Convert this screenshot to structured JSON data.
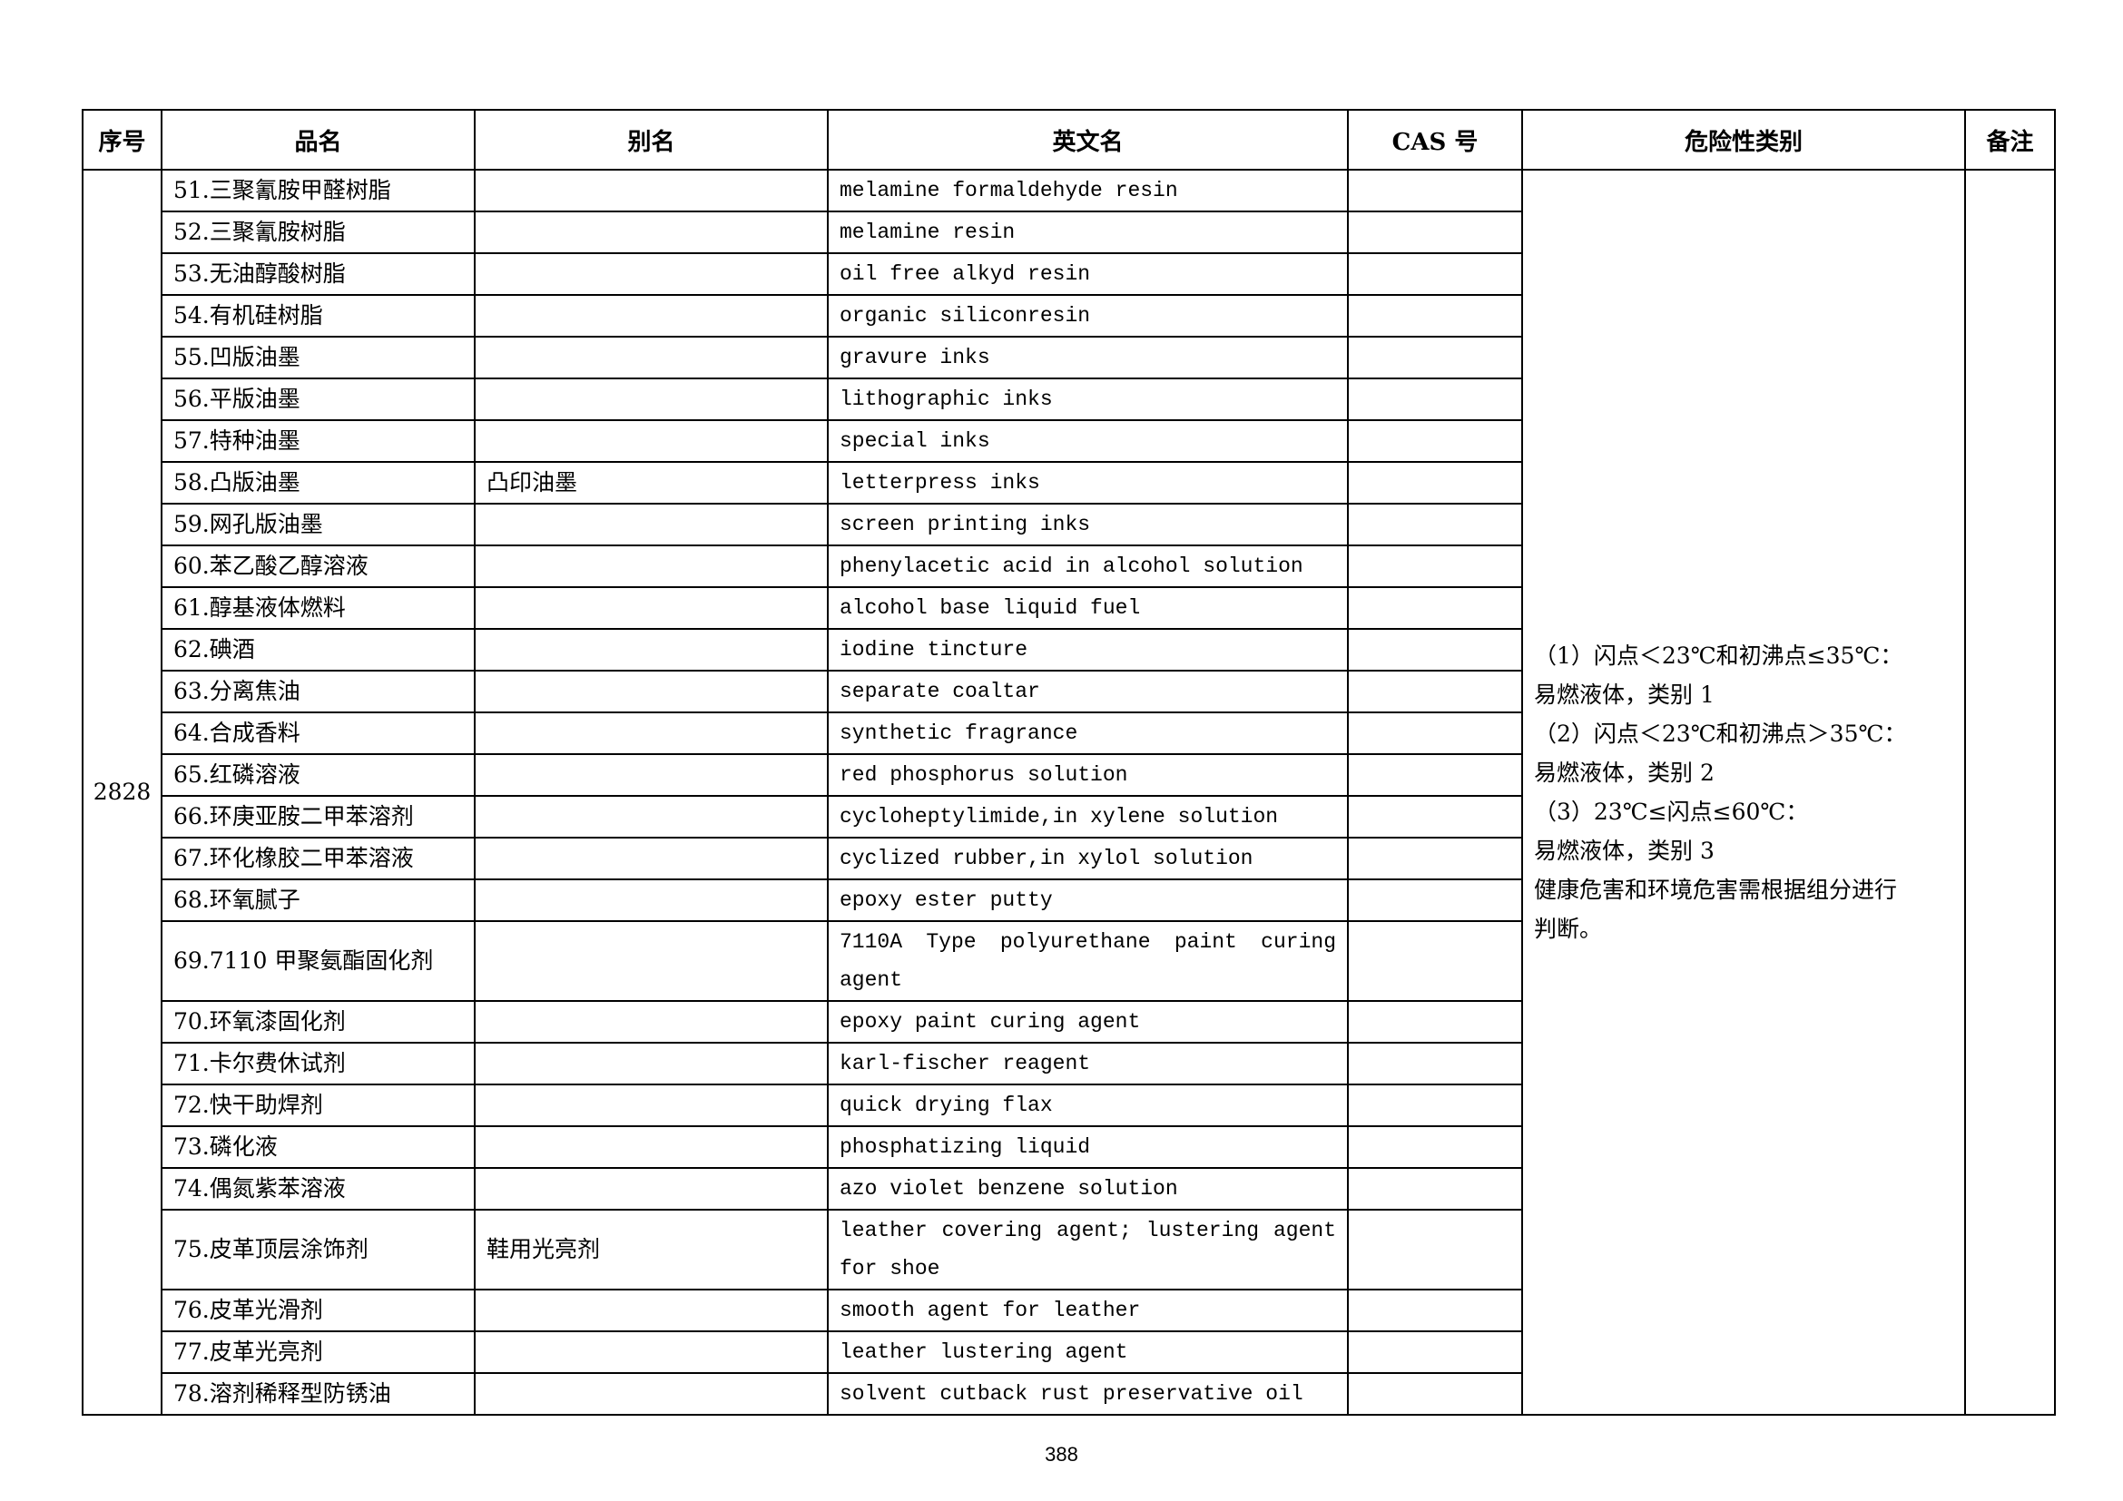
{
  "headers": [
    "序号",
    "品名",
    "别名",
    "英文名",
    "CAS 号",
    "危险性类别",
    "备注"
  ],
  "serial": "2828",
  "rows": [
    {
      "name": "51.三聚氰胺甲醛树脂",
      "alias": "",
      "en": "melamine formaldehyde resin"
    },
    {
      "name": "52.三聚氰胺树脂",
      "alias": "",
      "en": "melamine resin"
    },
    {
      "name": "53.无油醇酸树脂",
      "alias": "",
      "en": "oil free alkyd resin"
    },
    {
      "name": "54.有机硅树脂",
      "alias": "",
      "en": "organic siliconresin"
    },
    {
      "name": "55.凹版油墨",
      "alias": "",
      "en": "gravure inks"
    },
    {
      "name": "56.平版油墨",
      "alias": "",
      "en": "lithographic inks"
    },
    {
      "name": "57.特种油墨",
      "alias": "",
      "en": "special inks"
    },
    {
      "name": "58.凸版油墨",
      "alias": "凸印油墨",
      "en": "letterpress inks"
    },
    {
      "name": "59.网孔版油墨",
      "alias": "",
      "en": "screen printing inks"
    },
    {
      "name": "60.苯乙酸乙醇溶液",
      "alias": "",
      "en": "phenylacetic acid in alcohol solution"
    },
    {
      "name": "61.醇基液体燃料",
      "alias": "",
      "en": "alcohol base liquid fuel"
    },
    {
      "name": "62.碘酒",
      "alias": "",
      "en": "iodine tincture"
    },
    {
      "name": "63.分离焦油",
      "alias": "",
      "en": "separate coaltar"
    },
    {
      "name": "64.合成香料",
      "alias": "",
      "en": "synthetic fragrance"
    },
    {
      "name": "65.红磷溶液",
      "alias": "",
      "en": "red phosphorus solution"
    },
    {
      "name": "66.环庚亚胺二甲苯溶剂",
      "alias": "",
      "en": "cycloheptylimide,in xylene solution"
    },
    {
      "name": "67.环化橡胶二甲苯溶液",
      "alias": "",
      "en": "cyclized rubber,in xylol solution"
    },
    {
      "name": "68.环氧腻子",
      "alias": "",
      "en": "epoxy ester putty"
    },
    {
      "name": "69.7110 甲聚氨酯固化剂",
      "alias": "",
      "en": "7110A Type polyurethane paint curing agent"
    },
    {
      "name": "70.环氧漆固化剂",
      "alias": "",
      "en": "epoxy paint curing agent"
    },
    {
      "name": "71.卡尔费休试剂",
      "alias": "",
      "en": "karl-fischer reagent"
    },
    {
      "name": "72.快干助焊剂",
      "alias": "",
      "en": "quick drying flax"
    },
    {
      "name": "73.磷化液",
      "alias": "",
      "en": "phosphatizing liquid"
    },
    {
      "name": "74.偶氮紫苯溶液",
      "alias": "",
      "en": "azo violet benzene solution"
    },
    {
      "name": "75.皮革顶层涂饰剂",
      "alias": "鞋用光亮剂",
      "en": "leather covering agent; lustering agent for shoe"
    },
    {
      "name": "76.皮革光滑剂",
      "alias": "",
      "en": "smooth agent for leather"
    },
    {
      "name": "77.皮革光亮剂",
      "alias": "",
      "en": "leather lustering agent"
    },
    {
      "name": "78.溶剂稀释型防锈油",
      "alias": "",
      "en": "solvent cutback rust preservative oil"
    }
  ],
  "hazard_lines": [
    "（1）闪点＜23℃和初沸点≤35℃：",
    "易燃液体，类别 1",
    "（2）闪点＜23℃和初沸点＞35℃：",
    "易燃液体，类别 2",
    "（3）23℃≤闪点≤60℃：",
    "易燃液体，类别 3",
    "健康危害和环境危害需根据组分进行",
    "判断。"
  ],
  "page_number": "388"
}
